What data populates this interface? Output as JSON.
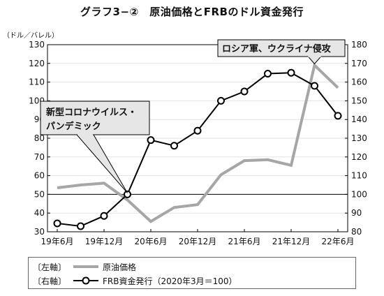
{
  "chart_data": {
    "type": "line",
    "title": "グラフ3−②　原油価格とFRBのドル資金発行",
    "left_axis_unit": "（ドル／バレル）",
    "x_tick_labels": [
      "19年6月",
      "19年12月",
      "20年6月",
      "20年12月",
      "21年6月",
      "21年12月",
      "22年6月"
    ],
    "left_axis": {
      "ylim": [
        30,
        130
      ],
      "ticks": [
        30,
        40,
        50,
        60,
        70,
        80,
        90,
        100,
        110,
        120,
        130
      ]
    },
    "right_axis": {
      "ylim": [
        80,
        180
      ],
      "ticks": [
        80,
        90,
        100,
        110,
        120,
        130,
        140,
        150,
        160,
        170,
        180
      ]
    },
    "reference_line": {
      "axis": "right",
      "value": 100
    },
    "grid": "horizontal",
    "series": [
      {
        "name": "原油価格",
        "axis": "left",
        "axis_label": "〔左軸〕",
        "color": "#a6a6a6",
        "x": [
          "2019-06",
          "2019-09",
          "2019-12",
          "2020-03",
          "2020-06",
          "2020-09",
          "2020-12",
          "2021-03",
          "2021-06",
          "2021-09",
          "2021-12",
          "2022-03",
          "2022-06"
        ],
        "values": [
          53.5,
          55,
          56,
          47,
          35.5,
          43,
          44.5,
          60.5,
          68,
          68.5,
          65.5,
          119,
          107
        ]
      },
      {
        "name": "FRB資金発行（2020年3月＝100）",
        "axis": "right",
        "axis_label": "〔右軸〕",
        "color": "#000000",
        "x": [
          "2019-06",
          "2019-09",
          "2019-12",
          "2020-03",
          "2020-06",
          "2020-09",
          "2020-12",
          "2021-03",
          "2021-06",
          "2021-09",
          "2021-12",
          "2022-03",
          "2022-06"
        ],
        "values": [
          84.5,
          83,
          88.5,
          100,
          129,
          126,
          134,
          150,
          155,
          164.5,
          165,
          158,
          142
        ]
      }
    ],
    "annotations": [
      {
        "lines": [
          "新型コロナウイルス・",
          "パンデミック"
        ],
        "points_to": "2020-03"
      },
      {
        "lines": [
          "ロシア軍、ウクライナ侵攻"
        ],
        "points_to": "2022-03"
      }
    ]
  }
}
